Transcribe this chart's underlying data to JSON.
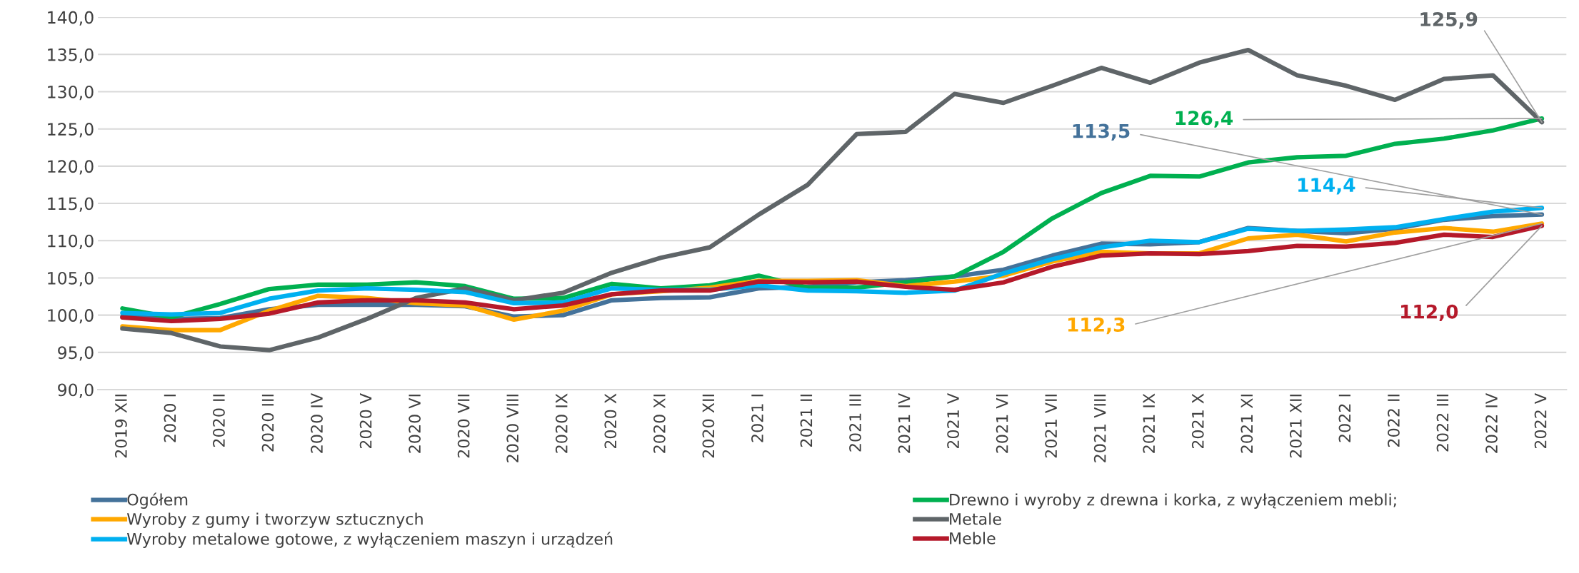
{
  "chart_data": {
    "type": "line",
    "categories": [
      "2019 XII",
      "2020 I",
      "2020 II",
      "2020 III",
      "2020 IV",
      "2020 V",
      "2020 VI",
      "2020 VII",
      "2020 VIII",
      "2020 IX",
      "2020 X",
      "2020 XI",
      "2020 XII",
      "2021 I",
      "2021 II",
      "2021 III",
      "2021 IV",
      "2021 V",
      "2021 VI",
      "2021 VII",
      "2021 VIII",
      "2021 IX",
      "2021 X",
      "2021 XI",
      "2021 XII",
      "2022 I",
      "2022 II",
      "2022 III",
      "2022 IV",
      "2022 V"
    ],
    "series": [
      {
        "name": "Ogółem",
        "color": "#44729a",
        "values": [
          99.8,
          99.5,
          99.6,
          100.8,
          101.4,
          101.4,
          101.4,
          101.2,
          99.8,
          100.0,
          102.0,
          102.3,
          102.4,
          103.6,
          103.8,
          104.4,
          104.7,
          105.2,
          106.1,
          108.0,
          109.6,
          109.5,
          109.8,
          111.7,
          111.3,
          111.0,
          111.6,
          112.8,
          113.3,
          113.5
        ],
        "value_labels": [
          null,
          null,
          null,
          null,
          null,
          null,
          null,
          null,
          null,
          null,
          null,
          null,
          null,
          null,
          null,
          null,
          null,
          null,
          null,
          null,
          null,
          null,
          null,
          null,
          null,
          null,
          null,
          null,
          null,
          "113,5"
        ]
      },
      {
        "name": "Drewno i wyroby z drewna i korka, z wyłączeniem mebli;",
        "color": "#00b050",
        "values": [
          100.9,
          99.7,
          101.5,
          103.5,
          104.1,
          104.1,
          104.4,
          103.9,
          102.2,
          102.3,
          104.2,
          103.6,
          104.0,
          105.3,
          103.7,
          103.7,
          104.4,
          105.2,
          108.5,
          113.0,
          116.4,
          118.7,
          118.6,
          120.5,
          121.2,
          121.4,
          123.0,
          123.7,
          124.8,
          126.4
        ],
        "value_labels": [
          null,
          null,
          null,
          null,
          null,
          null,
          null,
          null,
          null,
          null,
          null,
          null,
          null,
          null,
          null,
          null,
          null,
          null,
          null,
          null,
          null,
          null,
          null,
          null,
          null,
          null,
          null,
          null,
          null,
          "126,4"
        ]
      },
      {
        "name": "Wyroby z gumy i tworzyw sztucznych",
        "color": "#ffa800",
        "values": [
          98.5,
          98.0,
          98.0,
          100.6,
          102.6,
          102.3,
          101.6,
          101.3,
          99.4,
          100.6,
          102.8,
          103.2,
          103.7,
          104.6,
          104.6,
          104.7,
          103.9,
          104.5,
          105.3,
          107.2,
          108.5,
          108.3,
          108.3,
          110.3,
          110.8,
          109.9,
          111.1,
          111.7,
          111.2,
          112.3
        ],
        "value_labels": [
          null,
          null,
          null,
          null,
          null,
          null,
          null,
          null,
          null,
          null,
          null,
          null,
          null,
          null,
          null,
          null,
          null,
          null,
          null,
          null,
          null,
          null,
          null,
          null,
          null,
          null,
          null,
          null,
          null,
          "112,3"
        ]
      },
      {
        "name": "Metale",
        "color": "#5f6568",
        "values": [
          98.2,
          97.6,
          95.8,
          95.3,
          97.0,
          99.5,
          102.3,
          103.6,
          102.0,
          103.0,
          105.7,
          107.7,
          109.1,
          113.5,
          117.5,
          124.3,
          124.6,
          129.7,
          128.5,
          130.8,
          133.2,
          131.2,
          133.9,
          135.6,
          132.2,
          130.8,
          128.9,
          131.7,
          132.2,
          125.9
        ],
        "value_labels": [
          null,
          null,
          null,
          null,
          null,
          null,
          null,
          null,
          null,
          null,
          null,
          null,
          null,
          null,
          null,
          null,
          null,
          null,
          null,
          null,
          null,
          null,
          null,
          null,
          null,
          null,
          null,
          null,
          null,
          "125,9"
        ]
      },
      {
        "name": "Wyroby metalowe gotowe, z wyłączeniem maszyn i urządzeń",
        "color": "#00b0f0",
        "values": [
          100.3,
          100.1,
          100.3,
          102.2,
          103.3,
          103.6,
          103.4,
          103.1,
          101.6,
          101.7,
          103.6,
          103.4,
          103.4,
          104.0,
          103.3,
          103.2,
          103.0,
          103.3,
          105.6,
          107.5,
          109.1,
          110.0,
          109.8,
          111.6,
          111.3,
          111.5,
          111.8,
          112.9,
          113.9,
          114.4
        ],
        "value_labels": [
          null,
          null,
          null,
          null,
          null,
          null,
          null,
          null,
          null,
          null,
          null,
          null,
          null,
          null,
          null,
          null,
          null,
          null,
          null,
          null,
          null,
          null,
          null,
          null,
          null,
          null,
          null,
          null,
          null,
          "114,4"
        ]
      },
      {
        "name": "Meble",
        "color": "#b5192a",
        "values": [
          99.7,
          99.2,
          99.5,
          100.2,
          101.7,
          102.0,
          102.0,
          101.7,
          100.8,
          101.3,
          102.8,
          103.3,
          103.3,
          104.5,
          104.4,
          104.5,
          103.8,
          103.4,
          104.4,
          106.5,
          108.0,
          108.3,
          108.2,
          108.6,
          109.3,
          109.2,
          109.7,
          110.8,
          110.5,
          112.0
        ],
        "value_labels": [
          null,
          null,
          null,
          null,
          null,
          null,
          null,
          null,
          null,
          null,
          null,
          null,
          null,
          null,
          null,
          null,
          null,
          null,
          null,
          null,
          null,
          null,
          null,
          null,
          null,
          null,
          null,
          null,
          null,
          "112,0"
        ]
      }
    ],
    "ylim": [
      90,
      140
    ],
    "yticks": [
      {
        "value": 90,
        "label": "90,0"
      },
      {
        "value": 95,
        "label": "95,0"
      },
      {
        "value": 100,
        "label": "100,0"
      },
      {
        "value": 105,
        "label": "105,0"
      },
      {
        "value": 110,
        "label": "110,0"
      },
      {
        "value": 115,
        "label": "115,0"
      },
      {
        "value": 120,
        "label": "120,0"
      },
      {
        "value": 125,
        "label": "125,0"
      },
      {
        "value": 130,
        "label": "130,0"
      },
      {
        "value": 135,
        "label": "135,0"
      },
      {
        "value": 140,
        "label": "140,0"
      }
    ],
    "grid": "y",
    "legend": "bottom",
    "marker": "none",
    "line_style": "solid"
  }
}
